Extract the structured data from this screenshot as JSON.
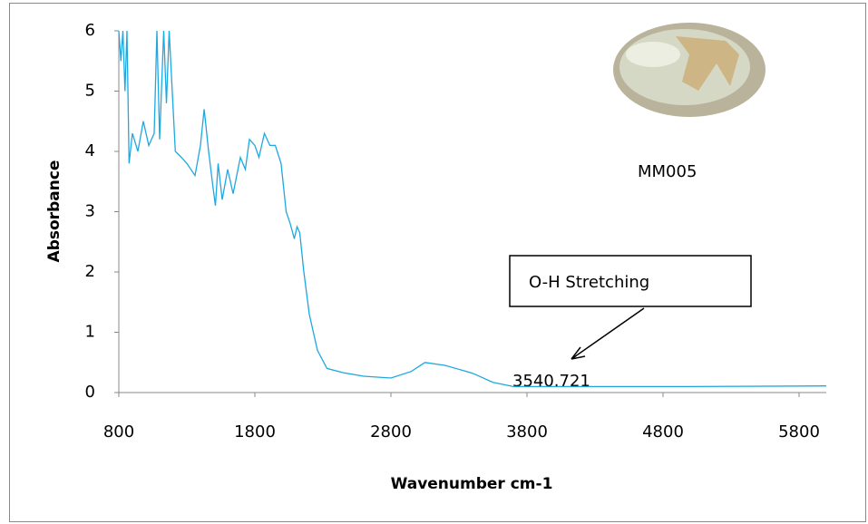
{
  "chart_data": {
    "type": "line",
    "x_label": "Wavenumber cm-1",
    "y_label": "Absorbance",
    "annotations": [
      "MM005",
      "O-H Stretching",
      "3540.721"
    ],
    "x": [
      800,
      815,
      830,
      845,
      860,
      875,
      900,
      940,
      980,
      1020,
      1060,
      1080,
      1100,
      1130,
      1150,
      1170,
      1193,
      1215,
      1260,
      1300,
      1360,
      1400,
      1427,
      1460,
      1493,
      1510,
      1530,
      1560,
      1600,
      1640,
      1693,
      1730,
      1760,
      1800,
      1830,
      1870,
      1910,
      1950,
      1993,
      2030,
      2060,
      2090,
      2110,
      2130,
      2160,
      2200,
      2260,
      2330,
      2450,
      2600,
      2800,
      2950,
      3050,
      3200,
      3400,
      3550,
      3700,
      4000,
      5000,
      6000
    ],
    "series": [
      {
        "name": "MM005",
        "color": "#1ea8e0",
        "values": [
          6,
          5.5,
          6,
          5.0,
          6,
          3.8,
          4.3,
          4.0,
          4.5,
          4.1,
          4.3,
          6,
          4.2,
          6,
          4.8,
          6,
          5.0,
          4.0,
          3.9,
          3.8,
          3.6,
          4.1,
          4.7,
          4.0,
          3.4,
          3.1,
          3.8,
          3.2,
          3.7,
          3.3,
          3.9,
          3.7,
          4.2,
          4.1,
          3.9,
          4.3,
          4.1,
          4.1,
          3.8,
          3.0,
          2.8,
          2.55,
          2.75,
          2.65,
          2.0,
          1.3,
          0.7,
          0.4,
          0.33,
          0.27,
          0.24,
          0.35,
          0.5,
          0.45,
          0.32,
          0.17,
          0.1,
          0.1,
          0.1,
          0.11
        ]
      }
    ],
    "xlim": [
      800,
      6000
    ],
    "ylim": [
      0,
      6
    ],
    "xticks": [
      800,
      1800,
      2800,
      3800,
      4800,
      5800
    ],
    "yticks": [
      0,
      1,
      2,
      3,
      4,
      5,
      6
    ]
  }
}
